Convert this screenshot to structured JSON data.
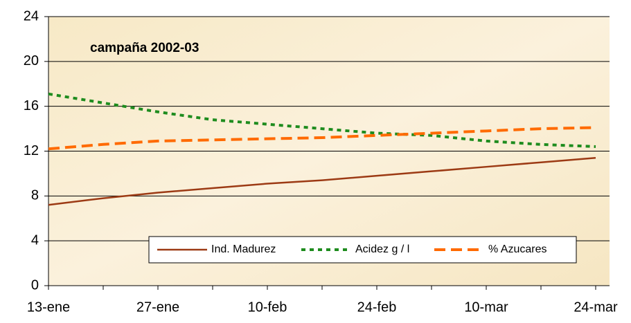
{
  "chart_data": {
    "type": "line",
    "title": "campaña 2002-03",
    "categories": [
      "13-ene",
      null,
      "27-ene",
      null,
      "10-feb",
      null,
      "24-feb",
      null,
      "10-mar",
      null,
      "24-mar"
    ],
    "series": [
      {
        "name": "Ind. Madurez",
        "color": "#9c3a14",
        "dash": "solid",
        "values": [
          7.2,
          7.8,
          8.3,
          8.7,
          9.1,
          9.4,
          9.8,
          10.2,
          10.6,
          11.0,
          11.4
        ]
      },
      {
        "name": "Acidez g / l",
        "color": "#1e8c1e",
        "dash": "dotted",
        "values": [
          17.1,
          16.3,
          15.5,
          14.8,
          14.4,
          14.0,
          13.6,
          13.4,
          12.9,
          12.6,
          12.4
        ]
      },
      {
        "name": "% Azucares",
        "color": "#ff6a00",
        "dash": "dashed",
        "values": [
          12.2,
          12.6,
          12.9,
          13.0,
          13.1,
          13.2,
          13.4,
          13.6,
          13.8,
          14.0,
          14.1
        ]
      }
    ],
    "ylim": [
      0,
      24
    ],
    "yticks": [
      0,
      4,
      8,
      12,
      16,
      20,
      24
    ],
    "grid": true,
    "legend": "bottom"
  }
}
